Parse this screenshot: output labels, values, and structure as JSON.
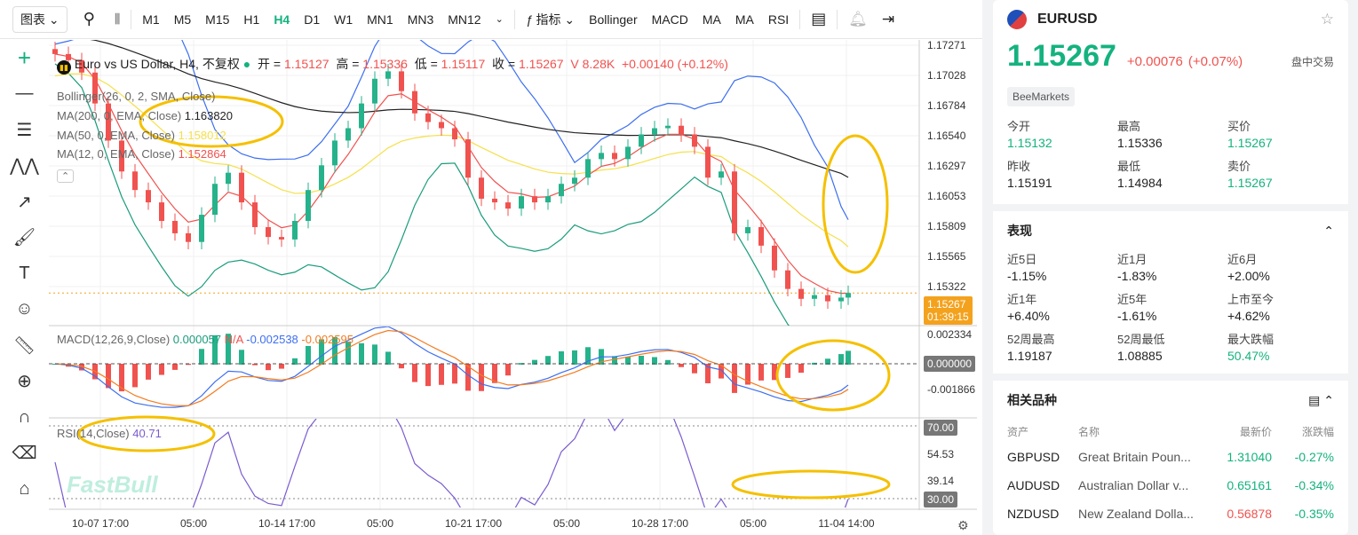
{
  "toolbar": {
    "chart_menu": "图表",
    "timeframes": [
      "M1",
      "M5",
      "M15",
      "H1",
      "H4",
      "D1",
      "W1",
      "MN1",
      "MN3",
      "MN12"
    ],
    "active_timeframe": "H4",
    "indicators_label": "指标",
    "indicators": [
      "Bollinger",
      "MACD",
      "MA",
      "MA",
      "RSI"
    ]
  },
  "legend": {
    "title": "Euro vs US Dollar, H4, 不复权",
    "open_label": "开 =",
    "open": "1.15127",
    "high_label": "高 =",
    "high": "1.15336",
    "low_label": "低 =",
    "low": "1.15117",
    "close_label": "收 =",
    "close": "1.15267",
    "volume": "V 8.28K",
    "change": "+0.00140 (+0.12%)",
    "bollinger": "Bollinger(26, 0, 2, SMA, Close)",
    "ma200": "MA(200, 0, EMA, Close)",
    "ma200_val": "1.163820",
    "ma50": "MA(50, 0, EMA, Close)",
    "ma50_val": "1.158012",
    "ma12": "MA(12, 0, EMA, Close)",
    "ma12_val": "1.152864"
  },
  "macd_legend": {
    "name": "MACD(12,26,9,Close)",
    "hist": "0.000057",
    "na": "N/A",
    "macd": "-0.002538",
    "signal": "-0.002595"
  },
  "rsi_legend": {
    "name": "RSI(14,Close)",
    "value": "40.71"
  },
  "price_axis": [
    "1.17271",
    "1.17028",
    "1.16784",
    "1.16540",
    "1.16297",
    "1.16053",
    "1.15809",
    "1.15565",
    "1.15322"
  ],
  "current_price": {
    "price": "1.15267",
    "countdown": "01:39:15"
  },
  "macd_axis": {
    "top": "0.002334",
    "zero": "0.000000",
    "bottom": "-0.001866"
  },
  "rsi_axis": {
    "upper": "70.00",
    "mid1": "54.53",
    "mid2": "39.14",
    "lower": "30.00"
  },
  "time_axis": [
    "10-07 17:00",
    "05:00",
    "10-14 17:00",
    "05:00",
    "10-21 17:00",
    "05:00",
    "10-28 17:00",
    "05:00",
    "11-04 14:00"
  ],
  "watermark": "FastBull",
  "colors": {
    "up": "#26b28b",
    "down": "#f0524f",
    "ma200": "#222222",
    "ma50": "#f5e04a",
    "ma12": "#f0524f",
    "bb_upper": "#3d6ff0",
    "bb_lower": "#1a9c7c",
    "annotation": "#f5c000",
    "macd": "#3d6ff0",
    "signal": "#f37b20",
    "rsi": "#7b5bd0"
  },
  "chart_data": {
    "type": "candlestick",
    "symbol": "EURUSD",
    "timeframe": "H4",
    "closes": [
      1.172,
      1.1715,
      1.1705,
      1.168,
      1.165,
      1.1625,
      1.161,
      1.16,
      1.1585,
      1.1575,
      1.1568,
      1.159,
      1.1615,
      1.1624,
      1.16,
      1.158,
      1.1572,
      1.157,
      1.1585,
      1.161,
      1.163,
      1.165,
      1.166,
      1.168,
      1.17,
      1.1706,
      1.169,
      1.1672,
      1.1665,
      1.166,
      1.1651,
      1.162,
      1.1603,
      1.16,
      1.1595,
      1.1605,
      1.16,
      1.1605,
      1.1615,
      1.162,
      1.1635,
      1.164,
      1.1635,
      1.1645,
      1.1655,
      1.166,
      1.1662,
      1.1655,
      1.1645,
      1.162,
      1.1625,
      1.1575,
      1.158,
      1.1565,
      1.1545,
      1.153,
      1.1522,
      1.1525,
      1.152,
      1.1523,
      1.15267
    ]
  },
  "panel": {
    "symbol": "EURUSD",
    "price": "1.15267",
    "change": "+0.00076",
    "change_pct": "(+0.07%)",
    "status": "盘中交易",
    "broker": "BeeMarkets",
    "quote": [
      {
        "label": "今开",
        "value": "1.15132",
        "color": "g"
      },
      {
        "label": "最高",
        "value": "1.15336",
        "color": ""
      },
      {
        "label": "买价",
        "value": "1.15267",
        "color": "g"
      },
      {
        "label": "昨收",
        "value": "1.15191",
        "color": ""
      },
      {
        "label": "最低",
        "value": "1.14984",
        "color": ""
      },
      {
        "label": "卖价",
        "value": "1.15267",
        "color": "g"
      }
    ],
    "performance_title": "表现",
    "performance": [
      {
        "label": "近5日",
        "value": "-1.15%"
      },
      {
        "label": "近1月",
        "value": "-1.83%"
      },
      {
        "label": "近6月",
        "value": "+2.00%"
      },
      {
        "label": "近1年",
        "value": "+6.40%"
      },
      {
        "label": "近5年",
        "value": "-1.61%"
      },
      {
        "label": "上市至今",
        "value": "+4.62%"
      },
      {
        "label": "52周最高",
        "value": "1.19187"
      },
      {
        "label": "52周最低",
        "value": "1.08885"
      },
      {
        "label": "最大跌幅",
        "value": "50.47%",
        "color": "g"
      }
    ],
    "related_title": "相关品种",
    "related_headers": [
      "资产",
      "名称",
      "最新价",
      "涨跌幅"
    ],
    "related": [
      {
        "symbol": "GBPUSD",
        "name": "Great Britain Poun...",
        "price": "1.31040",
        "pc": "g",
        "change": "-0.27%"
      },
      {
        "symbol": "AUDUSD",
        "name": "Australian Dollar v...",
        "price": "0.65161",
        "pc": "g",
        "change": "-0.34%"
      },
      {
        "symbol": "NZDUSD",
        "name": "New Zealand Dolla...",
        "price": "0.56878",
        "pc": "r",
        "change": "-0.35%"
      }
    ]
  }
}
